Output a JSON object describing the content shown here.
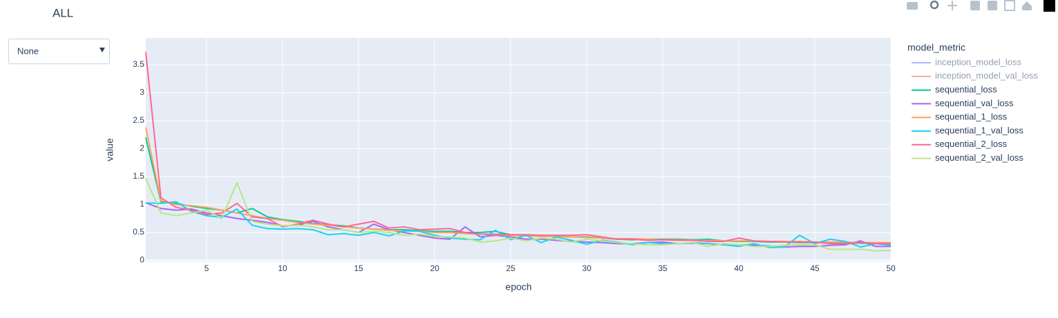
{
  "chart_data": {
    "type": "line",
    "title": "ALL",
    "dropdown": "None",
    "x_label": "epoch",
    "y_label": "value",
    "legend_title": "model_metric",
    "x": [
      1,
      2,
      3,
      4,
      5,
      6,
      7,
      8,
      9,
      10,
      11,
      12,
      13,
      14,
      15,
      16,
      17,
      18,
      19,
      20,
      21,
      22,
      23,
      24,
      25,
      26,
      27,
      28,
      29,
      30,
      31,
      32,
      33,
      34,
      35,
      36,
      37,
      38,
      39,
      40,
      41,
      42,
      43,
      44,
      45,
      46,
      47,
      48,
      49,
      50
    ],
    "xlim": [
      1,
      50
    ],
    "xticks": [
      5,
      10,
      15,
      20,
      25,
      30,
      35,
      40,
      45,
      50
    ],
    "ylim": [
      -0.03,
      3.98
    ],
    "yticks": [
      0,
      0.5,
      1,
      1.5,
      2,
      2.5,
      3,
      3.5
    ],
    "grid": true,
    "series": [
      {
        "name": "inception_model_loss",
        "color": "#636efa",
        "visible": "legendonly"
      },
      {
        "name": "inception_model_val_loss",
        "color": "#EF553B",
        "visible": "legendonly"
      },
      {
        "name": "sequential_loss",
        "color": "#00cc96",
        "values": [
          2.2,
          1.05,
          1.02,
          0.97,
          0.93,
          0.9,
          0.85,
          0.93,
          0.78,
          0.73,
          0.7,
          0.66,
          0.64,
          0.62,
          0.58,
          0.56,
          0.55,
          0.55,
          0.53,
          0.52,
          0.52,
          0.5,
          0.5,
          0.52,
          0.46,
          0.45,
          0.44,
          0.43,
          0.42,
          0.42,
          0.4,
          0.38,
          0.37,
          0.38,
          0.38,
          0.38,
          0.37,
          0.38,
          0.35,
          0.34,
          0.34,
          0.33,
          0.33,
          0.32,
          0.32,
          0.32,
          0.31,
          0.31,
          0.3,
          0.3
        ]
      },
      {
        "name": "sequential_val_loss",
        "color": "#ab63fa",
        "values": [
          1.03,
          0.93,
          0.9,
          0.92,
          0.85,
          0.8,
          0.75,
          0.72,
          0.68,
          0.62,
          0.63,
          0.7,
          0.6,
          0.55,
          0.5,
          0.65,
          0.55,
          0.5,
          0.45,
          0.4,
          0.38,
          0.6,
          0.42,
          0.45,
          0.42,
          0.38,
          0.38,
          0.36,
          0.34,
          0.33,
          0.32,
          0.3,
          0.3,
          0.32,
          0.33,
          0.3,
          0.31,
          0.3,
          0.28,
          0.28,
          0.27,
          0.26,
          0.24,
          0.25,
          0.25,
          0.27,
          0.28,
          0.35,
          0.25,
          0.25
        ]
      },
      {
        "name": "sequential_1_loss",
        "color": "#FFA15A",
        "values": [
          2.38,
          1.07,
          1.0,
          0.98,
          0.95,
          0.9,
          0.85,
          0.8,
          0.75,
          0.72,
          0.68,
          0.65,
          0.63,
          0.6,
          0.58,
          0.56,
          0.54,
          0.53,
          0.52,
          0.5,
          0.5,
          0.48,
          0.47,
          0.46,
          0.45,
          0.44,
          0.43,
          0.43,
          0.42,
          0.41,
          0.4,
          0.39,
          0.39,
          0.38,
          0.37,
          0.37,
          0.36,
          0.36,
          0.35,
          0.35,
          0.35,
          0.34,
          0.34,
          0.34,
          0.33,
          0.33,
          0.33,
          0.32,
          0.32,
          0.32
        ]
      },
      {
        "name": "sequential_1_val_loss",
        "color": "#19d3f3",
        "values": [
          1.03,
          1.02,
          1.05,
          0.88,
          0.8,
          0.77,
          0.92,
          0.63,
          0.57,
          0.56,
          0.57,
          0.55,
          0.46,
          0.48,
          0.45,
          0.5,
          0.44,
          0.53,
          0.52,
          0.45,
          0.4,
          0.38,
          0.37,
          0.54,
          0.37,
          0.45,
          0.32,
          0.42,
          0.36,
          0.29,
          0.36,
          0.33,
          0.28,
          0.32,
          0.3,
          0.3,
          0.32,
          0.3,
          0.28,
          0.25,
          0.3,
          0.23,
          0.24,
          0.45,
          0.3,
          0.38,
          0.34,
          0.24,
          0.3,
          0.27
        ]
      },
      {
        "name": "sequential_2_loss",
        "color": "#FF6692",
        "values": [
          3.73,
          1.12,
          0.95,
          0.9,
          0.82,
          0.85,
          1.02,
          0.78,
          0.75,
          0.6,
          0.65,
          0.72,
          0.65,
          0.6,
          0.65,
          0.7,
          0.58,
          0.6,
          0.55,
          0.56,
          0.57,
          0.5,
          0.47,
          0.47,
          0.46,
          0.46,
          0.45,
          0.45,
          0.45,
          0.46,
          0.42,
          0.38,
          0.38,
          0.36,
          0.37,
          0.36,
          0.36,
          0.34,
          0.34,
          0.4,
          0.35,
          0.34,
          0.33,
          0.33,
          0.33,
          0.3,
          0.3,
          0.32,
          0.3,
          0.3
        ]
      },
      {
        "name": "sequential_2_val_loss",
        "color": "#B6E880",
        "values": [
          1.47,
          0.85,
          0.8,
          0.85,
          0.9,
          0.75,
          1.39,
          0.7,
          0.65,
          0.62,
          0.63,
          0.6,
          0.55,
          0.55,
          0.5,
          0.52,
          0.5,
          0.45,
          0.47,
          0.43,
          0.42,
          0.4,
          0.33,
          0.35,
          0.4,
          0.35,
          0.4,
          0.38,
          0.33,
          0.38,
          0.35,
          0.32,
          0.3,
          0.28,
          0.28,
          0.3,
          0.32,
          0.25,
          0.3,
          0.28,
          0.25,
          0.25,
          0.27,
          0.28,
          0.28,
          0.2,
          0.2,
          0.2,
          0.17,
          0.18
        ]
      }
    ]
  }
}
